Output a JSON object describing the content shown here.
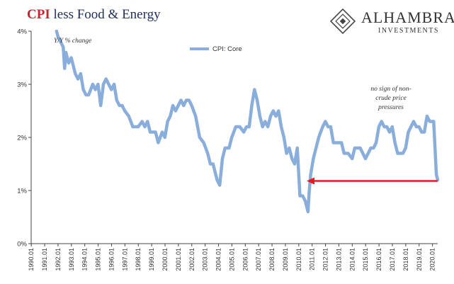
{
  "title": {
    "part1": "CPI",
    "part2": " less Food & Energy"
  },
  "logo": {
    "brand": "ALHAMBRA",
    "sub": "INVESTMENTS"
  },
  "colors": {
    "series": "#89aedb",
    "arrow": "#e31b23",
    "annotation": "#6b7a2a",
    "title_dark": "#1f2d5c",
    "title_red": "#c0282d"
  },
  "chart_data": {
    "type": "line",
    "ylabel": "Y/Y % change",
    "ylim": [
      0,
      4
    ],
    "xlim": [
      1990.0,
      2020.4
    ],
    "y_ticks": [
      "0%",
      "1%",
      "2%",
      "3%",
      "4%"
    ],
    "x_ticks": [
      "1990.01",
      "1991.01",
      "1992.01",
      "1993.01",
      "1994.01",
      "1995.01",
      "1996.01",
      "1997.01",
      "1998.01",
      "1999.01",
      "2000.01",
      "2001.01",
      "2002.01",
      "2003.01",
      "2004.01",
      "2005.01",
      "2006.01",
      "2007.01",
      "2008.01",
      "2009.01",
      "2010.01",
      "2011.01",
      "2012.01",
      "2013.01",
      "2014.01",
      "2015.01",
      "2016.01",
      "2017.01",
      "2018.01",
      "2019.01",
      "2020.01"
    ],
    "grid": false,
    "legend": "top-center",
    "annotation": [
      "no sign of non-",
      "crude price",
      "pressures"
    ],
    "arrow": {
      "from": [
        2020.4,
        1.18
      ],
      "to": [
        2010.6,
        1.18
      ]
    },
    "series": [
      {
        "name": "CPI: Core",
        "x": [
          1991.9,
          1992.0,
          1992.2,
          1992.4,
          1992.5,
          1992.6,
          1992.8,
          1993.0,
          1993.2,
          1993.3,
          1993.5,
          1993.7,
          1993.9,
          1994.1,
          1994.3,
          1994.6,
          1994.8,
          1995.0,
          1995.2,
          1995.4,
          1995.6,
          1995.8,
          1996.0,
          1996.2,
          1996.4,
          1996.6,
          1996.8,
          1997.0,
          1997.3,
          1997.6,
          1997.8,
          1998.0,
          1998.3,
          1998.5,
          1998.7,
          1998.9,
          1999.1,
          1999.3,
          1999.5,
          1999.8,
          2000.0,
          2000.2,
          2000.4,
          2000.6,
          2000.8,
          2001.0,
          2001.2,
          2001.4,
          2001.6,
          2001.8,
          2002.0,
          2002.3,
          2002.6,
          2002.9,
          2003.2,
          2003.4,
          2003.6,
          2003.9,
          2004.1,
          2004.3,
          2004.5,
          2004.8,
          2005.0,
          2005.3,
          2005.6,
          2005.9,
          2006.1,
          2006.3,
          2006.5,
          2006.7,
          2006.9,
          2007.1,
          2007.3,
          2007.5,
          2007.7,
          2007.9,
          2008.1,
          2008.3,
          2008.5,
          2008.7,
          2008.9,
          2009.1,
          2009.3,
          2009.5,
          2009.7,
          2009.9,
          2010.1,
          2010.3,
          2010.5,
          2010.7,
          2010.8,
          2010.9,
          2011.1,
          2011.3,
          2011.5,
          2011.8,
          2012.0,
          2012.2,
          2012.4,
          2012.6,
          2012.8,
          2013.0,
          2013.2,
          2013.4,
          2013.7,
          2014.0,
          2014.2,
          2014.4,
          2014.6,
          2014.8,
          2015.0,
          2015.2,
          2015.4,
          2015.6,
          2015.8,
          2016.0,
          2016.2,
          2016.4,
          2016.6,
          2016.8,
          2017.0,
          2017.2,
          2017.4,
          2017.6,
          2017.8,
          2018.0,
          2018.2,
          2018.4,
          2018.6,
          2018.8,
          2019.0,
          2019.2,
          2019.4,
          2019.6,
          2019.8,
          2020.0,
          2020.1,
          2020.2,
          2020.3,
          2020.4
        ],
        "values": [
          4.0,
          3.9,
          3.8,
          3.7,
          3.3,
          3.6,
          3.4,
          3.5,
          3.3,
          3.2,
          3.1,
          3.2,
          2.9,
          2.8,
          2.8,
          3.0,
          2.9,
          3.0,
          2.6,
          3.0,
          3.1,
          3.0,
          2.9,
          3.0,
          2.7,
          2.6,
          2.6,
          2.5,
          2.4,
          2.2,
          2.2,
          2.2,
          2.3,
          2.2,
          2.3,
          2.1,
          2.1,
          2.1,
          1.9,
          2.1,
          2.0,
          2.3,
          2.4,
          2.6,
          2.5,
          2.6,
          2.7,
          2.6,
          2.7,
          2.7,
          2.6,
          2.4,
          2.0,
          1.9,
          1.7,
          1.5,
          1.5,
          1.2,
          1.1,
          1.6,
          1.8,
          1.8,
          2.0,
          2.2,
          2.2,
          2.1,
          2.2,
          2.2,
          2.6,
          2.9,
          2.7,
          2.4,
          2.2,
          2.3,
          2.2,
          2.4,
          2.5,
          2.4,
          2.5,
          2.2,
          2.0,
          1.7,
          1.8,
          1.6,
          1.5,
          1.8,
          0.9,
          0.9,
          0.8,
          0.6,
          1.0,
          1.3,
          1.6,
          1.8,
          2.0,
          2.2,
          2.3,
          2.2,
          2.2,
          1.9,
          1.9,
          1.9,
          1.9,
          1.7,
          1.7,
          1.6,
          1.8,
          1.8,
          1.8,
          1.7,
          1.6,
          1.7,
          1.8,
          1.8,
          1.9,
          2.2,
          2.3,
          2.2,
          2.2,
          2.1,
          2.2,
          1.9,
          1.7,
          1.7,
          1.7,
          1.8,
          2.1,
          2.2,
          2.3,
          2.2,
          2.2,
          2.1,
          2.1,
          2.4,
          2.3,
          2.3,
          2.3,
          1.8,
          1.3,
          1.2
        ]
      }
    ]
  }
}
